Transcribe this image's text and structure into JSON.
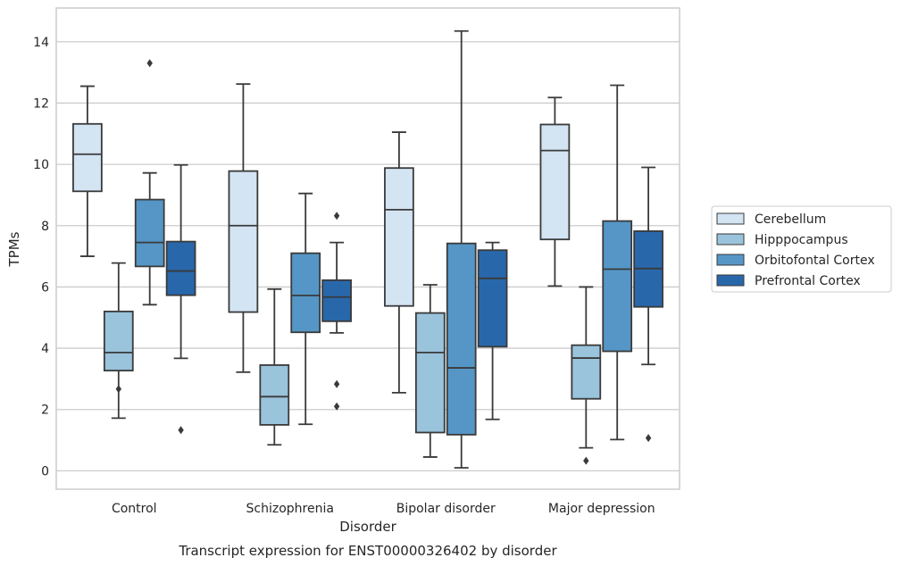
{
  "chart_data": {
    "type": "boxplot",
    "caption": "Transcript expression for ENST00000326402 by disorder",
    "xlabel": "Disorder",
    "ylabel": "TPMs",
    "ylim": [
      -0.6,
      15.1
    ],
    "yticks": [
      0,
      2,
      4,
      6,
      8,
      10,
      12,
      14
    ],
    "grid": "horizontal",
    "legend_position": "right",
    "categories": [
      "Control",
      "Schizophrenia",
      "Bipolar disorder",
      "Major depression"
    ],
    "series": [
      {
        "name": "Cerebellum",
        "color": "#d3e4f3",
        "boxes": [
          {
            "whislo": 7.0,
            "q1": 9.12,
            "med": 10.33,
            "q3": 11.32,
            "whishi": 12.55,
            "fliers": []
          },
          {
            "whislo": 3.22,
            "q1": 5.18,
            "med": 8.0,
            "q3": 9.78,
            "whishi": 12.62,
            "fliers": []
          },
          {
            "whislo": 2.55,
            "q1": 5.38,
            "med": 8.52,
            "q3": 9.88,
            "whishi": 11.05,
            "fliers": []
          },
          {
            "whislo": 6.03,
            "q1": 7.55,
            "med": 10.45,
            "q3": 11.3,
            "whishi": 12.18,
            "fliers": []
          }
        ]
      },
      {
        "name": "Hipppocampus",
        "color": "#9ac3dc",
        "boxes": [
          {
            "whislo": 1.72,
            "q1": 3.27,
            "med": 3.86,
            "q3": 5.2,
            "whishi": 6.78,
            "fliers": [
              2.67
            ]
          },
          {
            "whislo": 0.85,
            "q1": 1.5,
            "med": 2.42,
            "q3": 3.45,
            "whishi": 5.93,
            "fliers": []
          },
          {
            "whislo": 0.45,
            "q1": 1.25,
            "med": 3.86,
            "q3": 5.15,
            "whishi": 6.07,
            "fliers": []
          },
          {
            "whislo": 0.75,
            "q1": 2.35,
            "med": 3.68,
            "q3": 4.1,
            "whishi": 6.0,
            "fliers": [
              0.33
            ]
          }
        ]
      },
      {
        "name": "Orbitofontal Cortex",
        "color": "#5596c6",
        "boxes": [
          {
            "whislo": 5.42,
            "q1": 6.67,
            "med": 7.45,
            "q3": 8.85,
            "whishi": 9.72,
            "fliers": [
              13.3
            ]
          },
          {
            "whislo": 1.52,
            "q1": 4.52,
            "med": 5.72,
            "q3": 7.1,
            "whishi": 9.05,
            "fliers": []
          },
          {
            "whislo": 0.1,
            "q1": 1.18,
            "med": 3.36,
            "q3": 7.42,
            "whishi": 14.35,
            "fliers": []
          },
          {
            "whislo": 1.02,
            "q1": 3.9,
            "med": 6.58,
            "q3": 8.15,
            "whishi": 12.58,
            "fliers": []
          }
        ]
      },
      {
        "name": "Prefrontal Cortex",
        "color": "#2967ab",
        "boxes": [
          {
            "whislo": 3.67,
            "q1": 5.73,
            "med": 6.52,
            "q3": 7.48,
            "whishi": 9.98,
            "fliers": [
              1.33
            ]
          },
          {
            "whislo": 4.5,
            "q1": 4.88,
            "med": 5.67,
            "q3": 6.22,
            "whishi": 7.45,
            "fliers": [
              8.32,
              2.83,
              2.1
            ]
          },
          {
            "whislo": 1.68,
            "q1": 4.05,
            "med": 6.28,
            "q3": 7.2,
            "whishi": 7.45,
            "fliers": []
          },
          {
            "whislo": 3.47,
            "q1": 5.35,
            "med": 6.6,
            "q3": 7.82,
            "whishi": 9.9,
            "fliers": [
              1.07
            ]
          }
        ]
      }
    ]
  }
}
